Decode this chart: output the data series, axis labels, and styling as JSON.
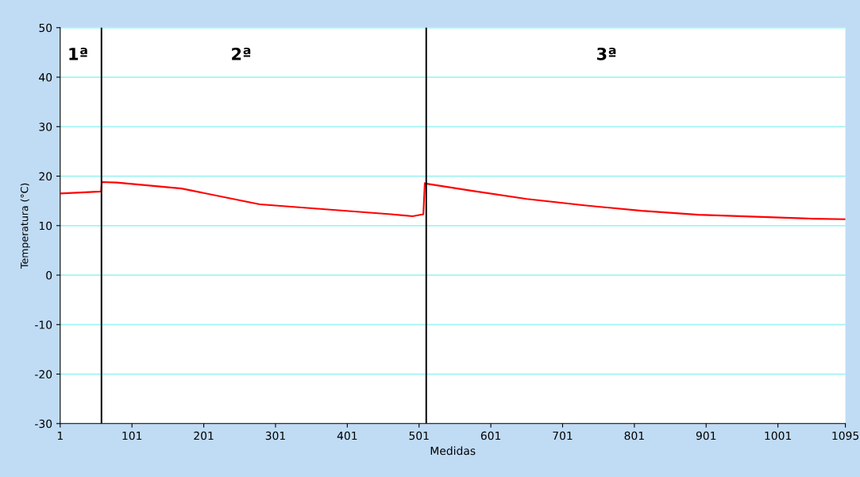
{
  "chart_data": {
    "type": "line",
    "xlabel": "Medidas",
    "ylabel": "Temperatura (°C)",
    "x": [
      1,
      30,
      58,
      59,
      80,
      170,
      279,
      352,
      462,
      492,
      507,
      509,
      510,
      572,
      651,
      731,
      811,
      890,
      1050,
      1095
    ],
    "series": [
      {
        "color": "#ff0000",
        "values": [
          16.5,
          16.7,
          16.9,
          18.8,
          18.7,
          17.5,
          14.3,
          13.5,
          12.3,
          11.9,
          12.3,
          18.6,
          18.5,
          17.1,
          15.4,
          14.1,
          13.0,
          12.2,
          11.4,
          11.3
        ]
      }
    ],
    "xlim": [
      1,
      1095
    ],
    "xticks": [
      1,
      101,
      201,
      301,
      401,
      501,
      601,
      701,
      801,
      901,
      1001,
      1095
    ],
    "ylim": [
      -30,
      50
    ],
    "yticks": [
      -30,
      -20,
      -10,
      0,
      10,
      20,
      30,
      40,
      50
    ],
    "grid": "y",
    "marker": "none",
    "line_style": "solid",
    "ref_lines": [
      {
        "axis": "x",
        "value": 58.5,
        "color": "#000000"
      },
      {
        "axis": "x",
        "value": 511,
        "color": "#000000"
      }
    ],
    "annotations": [
      "1ª",
      "2ª",
      "3ª"
    ]
  }
}
